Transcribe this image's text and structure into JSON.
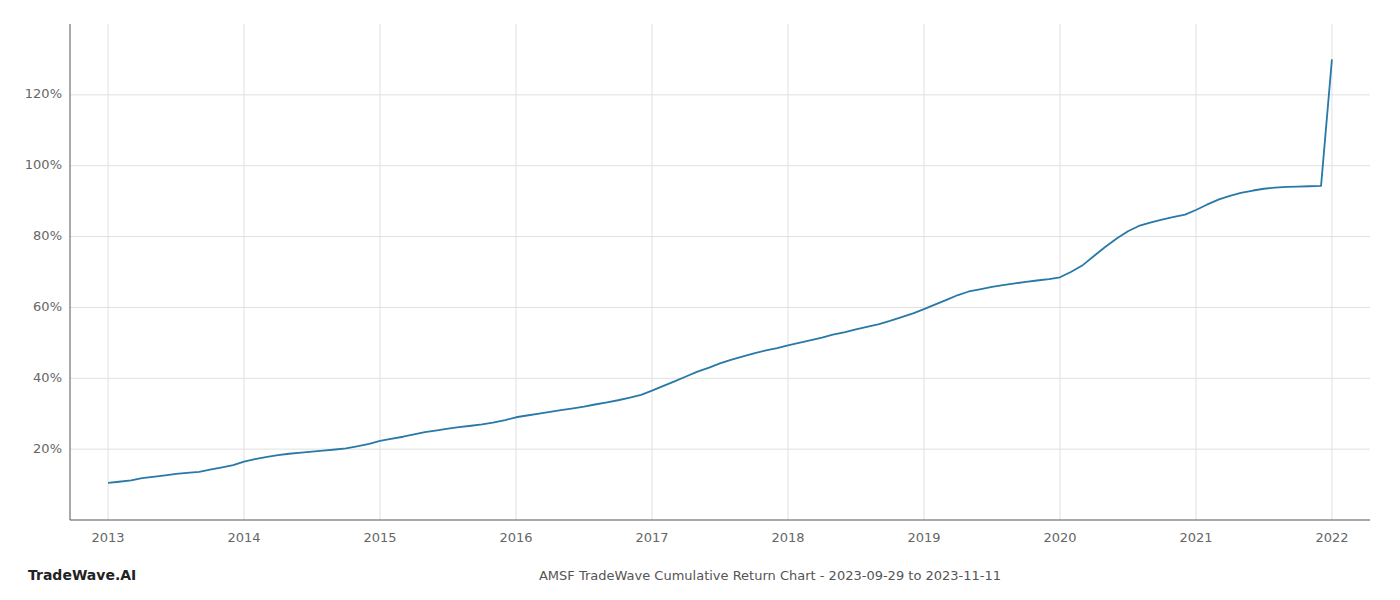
{
  "chart_data": {
    "type": "line",
    "title": "AMSF TradeWave Cumulative Return Chart - 2023-09-29 to 2023-11-11",
    "annotations": [
      "TradeWave.AI"
    ],
    "color": "#2878a8",
    "grid": true,
    "x": [
      2013.0,
      2013.08,
      2013.17,
      2013.25,
      2013.33,
      2013.42,
      2013.5,
      2013.58,
      2013.67,
      2013.75,
      2013.83,
      2013.92,
      2014.0,
      2014.08,
      2014.17,
      2014.25,
      2014.33,
      2014.42,
      2014.5,
      2014.58,
      2014.67,
      2014.75,
      2014.83,
      2014.92,
      2015.0,
      2015.08,
      2015.17,
      2015.25,
      2015.33,
      2015.42,
      2015.5,
      2015.58,
      2015.67,
      2015.75,
      2015.83,
      2015.92,
      2016.0,
      2016.08,
      2016.17,
      2016.25,
      2016.33,
      2016.42,
      2016.5,
      2016.58,
      2016.67,
      2016.75,
      2016.83,
      2016.92,
      2017.0,
      2017.08,
      2017.17,
      2017.25,
      2017.33,
      2017.42,
      2017.5,
      2017.58,
      2017.67,
      2017.75,
      2017.83,
      2017.92,
      2018.0,
      2018.08,
      2018.17,
      2018.25,
      2018.33,
      2018.42,
      2018.5,
      2018.58,
      2018.67,
      2018.75,
      2018.83,
      2018.92,
      2019.0,
      2019.08,
      2019.17,
      2019.25,
      2019.33,
      2019.42,
      2019.5,
      2019.58,
      2019.67,
      2019.75,
      2019.83,
      2019.92,
      2020.0,
      2020.08,
      2020.17,
      2020.25,
      2020.33,
      2020.42,
      2020.5,
      2020.58,
      2020.67,
      2020.75,
      2020.83,
      2020.92,
      2021.0,
      2021.08,
      2021.17,
      2021.25,
      2021.33,
      2021.42,
      2021.5,
      2021.58,
      2021.67,
      2021.75,
      2021.83,
      2021.92,
      2022.0
    ],
    "values": [
      10.5,
      10.8,
      11.2,
      11.8,
      12.2,
      12.6,
      13.0,
      13.3,
      13.6,
      14.2,
      14.8,
      15.5,
      16.5,
      17.2,
      17.8,
      18.3,
      18.7,
      19.0,
      19.3,
      19.6,
      19.9,
      20.2,
      20.8,
      21.5,
      22.3,
      22.9,
      23.5,
      24.2,
      24.8,
      25.3,
      25.8,
      26.2,
      26.6,
      27.0,
      27.5,
      28.2,
      29.0,
      29.5,
      30.0,
      30.5,
      31.0,
      31.5,
      32.0,
      32.6,
      33.2,
      33.8,
      34.5,
      35.3,
      36.5,
      37.8,
      39.2,
      40.5,
      41.8,
      43.0,
      44.2,
      45.2,
      46.2,
      47.0,
      47.8,
      48.5,
      49.3,
      50.0,
      50.8,
      51.5,
      52.3,
      53.0,
      53.8,
      54.5,
      55.3,
      56.2,
      57.2,
      58.3,
      59.5,
      60.8,
      62.2,
      63.5,
      64.5,
      65.2,
      65.8,
      66.3,
      66.8,
      67.2,
      67.6,
      68.0,
      68.5,
      70.0,
      72.0,
      74.5,
      77.0,
      79.5,
      81.5,
      83.0,
      84.0,
      84.8,
      85.5,
      86.2,
      87.5,
      89.0,
      90.5,
      91.5,
      92.3,
      93.0,
      93.5,
      93.8,
      94.0,
      94.1,
      94.2,
      94.3,
      130.0
    ],
    "xlim": [
      2012.72,
      2022.28
    ],
    "xticks": [
      2013,
      2014,
      2015,
      2016,
      2017,
      2018,
      2019,
      2020,
      2021,
      2022
    ],
    "ylim": [
      0,
      140
    ],
    "yticks": [
      {
        "value": 20,
        "label": "20%"
      },
      {
        "value": 40,
        "label": "40%"
      },
      {
        "value": 60,
        "label": "60%"
      },
      {
        "value": 80,
        "label": "80%"
      },
      {
        "value": 100,
        "label": "100%"
      },
      {
        "value": 120,
        "label": "120%"
      }
    ]
  }
}
